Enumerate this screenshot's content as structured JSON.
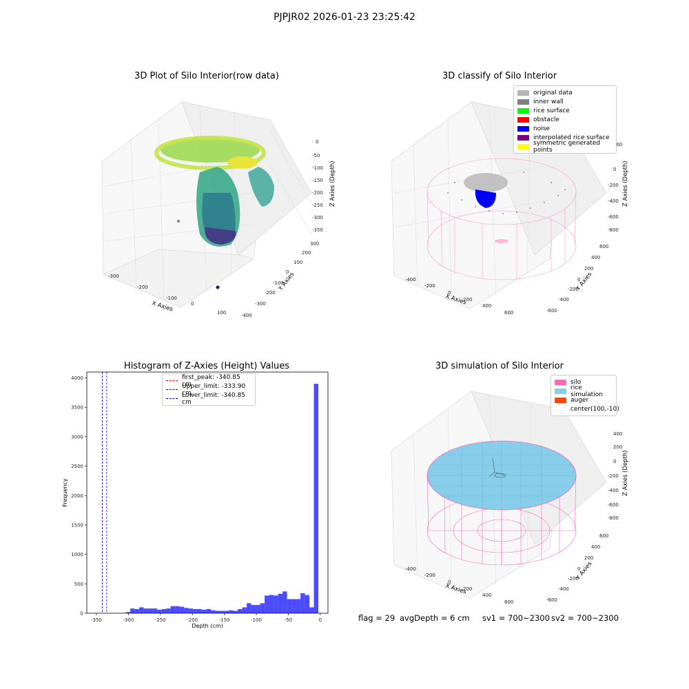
{
  "suptitle": "PJPJR02 2026-01-23 23:25:42",
  "chart_data": [
    {
      "type": "scatter",
      "title": "3D Plot of Silo Interior(row data)",
      "xlabel": "X Axies",
      "ylabel": "Y Axies",
      "zlabel": "Z Axies (Depth)",
      "x_ticks": [
        "-300",
        "-200",
        "-100",
        "0",
        "100"
      ],
      "y_ticks": [
        "-400",
        "-300",
        "-200",
        "-100",
        "0",
        "100",
        "200",
        "300"
      ],
      "z_ticks": [
        "0",
        "-50",
        "-100",
        "-150",
        "-200",
        "-250",
        "-300",
        "-350"
      ],
      "colormap": "viridis"
    },
    {
      "type": "scatter",
      "title": "3D classify of Silo Interior",
      "xlabel": "X Axies",
      "ylabel": "Y Axies",
      "zlabel": "Z Axies (Depth)",
      "x_ticks": [
        "-400",
        "-200",
        "0",
        "200",
        "400",
        "600"
      ],
      "y_ticks": [
        "-600",
        "-400",
        "-200",
        "0",
        "200",
        "400",
        "600"
      ],
      "z_ticks": [
        "200",
        "0",
        "-200",
        "-400",
        "-600",
        "-800"
      ],
      "legend": [
        {
          "label": "original data",
          "color": "#b4b4b4"
        },
        {
          "label": "inner wall",
          "color": "#808080"
        },
        {
          "label": "rice surface",
          "color": "#00ff00"
        },
        {
          "label": "obstacle",
          "color": "#ff0000"
        },
        {
          "label": "noise",
          "color": "#0000ff"
        },
        {
          "label": "interpolated rice surface",
          "color": "#800080"
        },
        {
          "label": "symmetric generated points",
          "color": "#ffff00"
        }
      ],
      "legend_position": "top-right"
    },
    {
      "type": "bar",
      "title": "Histogram of Z-Axies (Height) Values",
      "xlabel": "Depth (cm)",
      "ylabel": "Frequency",
      "xlim": [
        -365,
        12
      ],
      "ylim": [
        0,
        4100
      ],
      "x_ticks": [
        -350,
        -300,
        -250,
        -200,
        -150,
        -100,
        -50,
        0
      ],
      "y_ticks": [
        0,
        500,
        1000,
        1500,
        2000,
        2500,
        3000,
        3500,
        4000
      ],
      "bin_width": 7,
      "bin_start": -304,
      "bar_color": "#4b4bff",
      "values": [
        20,
        80,
        70,
        100,
        80,
        80,
        80,
        60,
        70,
        80,
        120,
        120,
        110,
        90,
        80,
        70,
        70,
        60,
        70,
        50,
        40,
        40,
        40,
        50,
        40,
        70,
        100,
        170,
        140,
        140,
        170,
        300,
        310,
        300,
        330,
        370,
        240,
        240,
        240,
        340,
        310,
        100,
        3900
      ],
      "vlines": [
        {
          "label": "first_peak: -340.85 cm",
          "x": -340.85,
          "color": "#ff0000"
        },
        {
          "label": "Upper_limit: -333.90 cm",
          "x": -333.9,
          "color": "#0000ff"
        },
        {
          "label": "Lower_limit: -340.85 cm",
          "x": -340.85,
          "color": "#0000ff"
        }
      ],
      "legend_position": "top-center"
    },
    {
      "type": "scatter",
      "title": "3D simulation of Silo Interior",
      "xlabel": "X Axies",
      "ylabel": "Y Axies",
      "zlabel": "Z Axies (Depth)",
      "x_ticks": [
        "-400",
        "-200",
        "0",
        "200",
        "400",
        "600"
      ],
      "y_ticks": [
        "-600",
        "-400",
        "-200",
        "0",
        "200",
        "400",
        "600"
      ],
      "z_ticks": [
        "400",
        "200",
        "0",
        "-200",
        "-400",
        "-600",
        "-800"
      ],
      "legend": [
        {
          "label": "silo",
          "color": "#ff69b4"
        },
        {
          "label": "rice simulation",
          "color": "#87ceeb"
        },
        {
          "label": "auger",
          "color": "#ff4500"
        },
        {
          "label": "center(100,-10)",
          "color": ""
        }
      ],
      "legend_position": "top-right"
    }
  ],
  "status": {
    "flag": "flag = 29",
    "avg_depth": "avgDepth = 6 cm",
    "sv1": "sv1 = 700~2300",
    "sv2": "sv2 = 700~2300"
  }
}
